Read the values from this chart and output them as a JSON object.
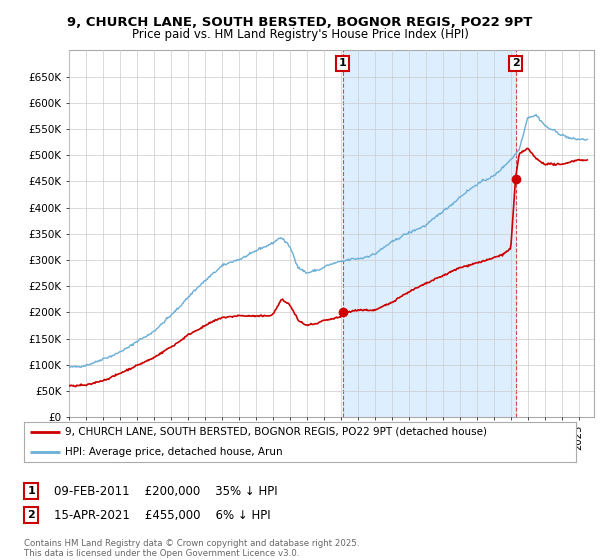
{
  "title_line1": "9, CHURCH LANE, SOUTH BERSTED, BOGNOR REGIS, PO22 9PT",
  "title_line2": "Price paid vs. HM Land Registry's House Price Index (HPI)",
  "ylim": [
    0,
    700000
  ],
  "yticks": [
    0,
    50000,
    100000,
    150000,
    200000,
    250000,
    300000,
    350000,
    400000,
    450000,
    500000,
    550000,
    600000,
    650000
  ],
  "ytick_labels": [
    "£0",
    "£50K",
    "£100K",
    "£150K",
    "£200K",
    "£250K",
    "£300K",
    "£350K",
    "£400K",
    "£450K",
    "£500K",
    "£550K",
    "£600K",
    "£650K"
  ],
  "xlim_start": 1995.0,
  "xlim_end": 2025.9,
  "hpi_color": "#6baed6",
  "price_color": "#cc0000",
  "sale1_date": 2011.1,
  "sale1_price": 200000,
  "sale1_label": "1",
  "sale1_text": "09-FEB-2011    £200,000    35% ↓ HPI",
  "sale2_date": 2021.29,
  "sale2_price": 455000,
  "sale2_label": "2",
  "sale2_text": "15-APR-2021    £455,000    6% ↓ HPI",
  "legend_line1": "9, CHURCH LANE, SOUTH BERSTED, BOGNOR REGIS, PO22 9PT (detached house)",
  "legend_line2": "HPI: Average price, detached house, Arun",
  "footer_text": "Contains HM Land Registry data © Crown copyright and database right 2025.\nThis data is licensed under the Open Government Licence v3.0.",
  "bg_color": "#ffffff",
  "grid_color": "#cccccc",
  "shade_color": "#ddeeff",
  "hpi_breakpoints": [
    1995,
    1996,
    1997,
    1998,
    1999,
    2000,
    2001,
    2002,
    2003,
    2004,
    2005,
    2006,
    2007,
    2007.5,
    2008.0,
    2008.5,
    2009,
    2009.5,
    2010,
    2011,
    2012,
    2013,
    2014,
    2015,
    2016,
    2017,
    2018,
    2019,
    2020,
    2021,
    2021.5,
    2022,
    2022.5,
    2023,
    2023.5,
    2024,
    2024.5,
    2025
  ],
  "hpi_values": [
    95000,
    100000,
    110000,
    125000,
    145000,
    165000,
    195000,
    230000,
    265000,
    295000,
    305000,
    320000,
    335000,
    345000,
    325000,
    285000,
    275000,
    280000,
    285000,
    295000,
    300000,
    310000,
    335000,
    355000,
    370000,
    395000,
    420000,
    445000,
    460000,
    490000,
    510000,
    570000,
    575000,
    555000,
    545000,
    535000,
    530000,
    530000
  ],
  "price_breakpoints": [
    1995,
    1996,
    1997,
    1998,
    1999,
    2000,
    2001,
    2002,
    2003,
    2004,
    2005,
    2006,
    2007,
    2007.5,
    2008.0,
    2008.5,
    2009.0,
    2009.5,
    2010,
    2011.0,
    2011.1,
    2012,
    2013,
    2014,
    2015,
    2016,
    2017,
    2018,
    2019,
    2020,
    2020.5,
    2021.0,
    2021.29,
    2021.5,
    2022.0,
    2022.5,
    2023,
    2023.5,
    2024,
    2025
  ],
  "price_values": [
    60000,
    63000,
    72000,
    85000,
    100000,
    115000,
    135000,
    158000,
    175000,
    190000,
    192000,
    193000,
    195000,
    225000,
    215000,
    185000,
    175000,
    178000,
    185000,
    192000,
    200000,
    205000,
    205000,
    220000,
    240000,
    255000,
    270000,
    285000,
    295000,
    305000,
    310000,
    320000,
    455000,
    500000,
    510000,
    490000,
    480000,
    480000,
    480000,
    490000
  ]
}
